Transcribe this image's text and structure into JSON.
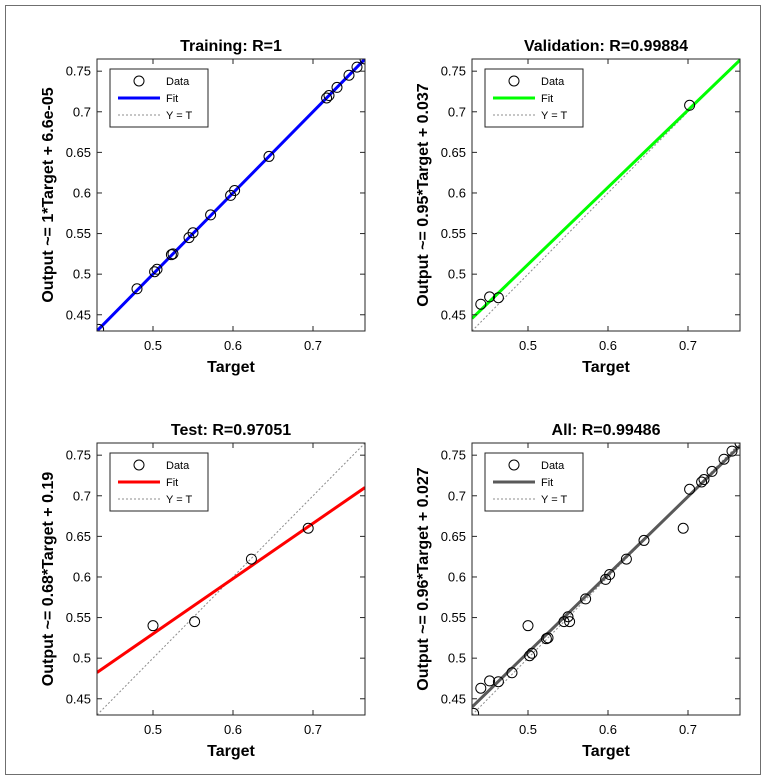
{
  "chart_data": [
    {
      "type": "scatter",
      "title": "Training: R=1",
      "xlabel": "Target",
      "ylabel": "Output ~= 1*Target + 6.6e-05",
      "xlim": [
        0.43,
        0.765
      ],
      "ylim": [
        0.43,
        0.765
      ],
      "xticks": [
        0.5,
        0.6,
        0.7
      ],
      "yticks": [
        0.45,
        0.5,
        0.55,
        0.6,
        0.65,
        0.7,
        0.75
      ],
      "fit": {
        "slope": 1,
        "intercept": 6.6e-05,
        "color": "#0000ff"
      },
      "legend": {
        "position": "top-left",
        "entries": [
          "Data",
          "Fit",
          "Y = T"
        ]
      },
      "points": [
        [
          0.432,
          0.432
        ],
        [
          0.48,
          0.482
        ],
        [
          0.502,
          0.503
        ],
        [
          0.505,
          0.506
        ],
        [
          0.523,
          0.524
        ],
        [
          0.525,
          0.525
        ],
        [
          0.545,
          0.545
        ],
        [
          0.55,
          0.551
        ],
        [
          0.572,
          0.573
        ],
        [
          0.597,
          0.597
        ],
        [
          0.602,
          0.603
        ],
        [
          0.645,
          0.645
        ],
        [
          0.717,
          0.717
        ],
        [
          0.72,
          0.72
        ],
        [
          0.73,
          0.73
        ],
        [
          0.745,
          0.745
        ],
        [
          0.755,
          0.755
        ],
        [
          0.765,
          0.765
        ]
      ]
    },
    {
      "type": "scatter",
      "title": "Validation: R=0.99884",
      "xlabel": "Target",
      "ylabel": "Output ~= 0.95*Target + 0.037",
      "xlim": [
        0.43,
        0.765
      ],
      "ylim": [
        0.43,
        0.765
      ],
      "xticks": [
        0.5,
        0.6,
        0.7
      ],
      "yticks": [
        0.45,
        0.5,
        0.55,
        0.6,
        0.65,
        0.7,
        0.75
      ],
      "fit": {
        "slope": 0.95,
        "intercept": 0.037,
        "color": "#00ff00"
      },
      "legend": {
        "position": "top-left",
        "entries": [
          "Data",
          "Fit",
          "Y = T"
        ]
      },
      "points": [
        [
          0.441,
          0.463
        ],
        [
          0.452,
          0.472
        ],
        [
          0.463,
          0.471
        ],
        [
          0.702,
          0.708
        ]
      ]
    },
    {
      "type": "scatter",
      "title": "Test: R=0.97051",
      "xlabel": "Target",
      "ylabel": "Output ~= 0.68*Target + 0.19",
      "xlim": [
        0.43,
        0.765
      ],
      "ylim": [
        0.43,
        0.765
      ],
      "xticks": [
        0.5,
        0.6,
        0.7
      ],
      "yticks": [
        0.45,
        0.5,
        0.55,
        0.6,
        0.65,
        0.7,
        0.75
      ],
      "fit": {
        "slope": 0.68,
        "intercept": 0.19,
        "color": "#ff0000"
      },
      "legend": {
        "position": "top-left",
        "entries": [
          "Data",
          "Fit",
          "Y = T"
        ]
      },
      "points": [
        [
          0.5,
          0.54
        ],
        [
          0.552,
          0.545
        ],
        [
          0.623,
          0.622
        ],
        [
          0.694,
          0.66
        ]
      ]
    },
    {
      "type": "scatter",
      "title": "All: R=0.99486",
      "xlabel": "Target",
      "ylabel": "Output ~= 0.96*Target + 0.027",
      "xlim": [
        0.43,
        0.765
      ],
      "ylim": [
        0.43,
        0.765
      ],
      "xticks": [
        0.5,
        0.6,
        0.7
      ],
      "yticks": [
        0.45,
        0.5,
        0.55,
        0.6,
        0.65,
        0.7,
        0.75
      ],
      "fit": {
        "slope": 0.96,
        "intercept": 0.027,
        "color": "#595959"
      },
      "legend": {
        "position": "top-left",
        "entries": [
          "Data",
          "Fit",
          "Y = T"
        ]
      },
      "points": [
        [
          0.432,
          0.432
        ],
        [
          0.441,
          0.463
        ],
        [
          0.452,
          0.472
        ],
        [
          0.463,
          0.471
        ],
        [
          0.48,
          0.482
        ],
        [
          0.5,
          0.54
        ],
        [
          0.502,
          0.503
        ],
        [
          0.505,
          0.506
        ],
        [
          0.523,
          0.524
        ],
        [
          0.525,
          0.525
        ],
        [
          0.545,
          0.545
        ],
        [
          0.55,
          0.551
        ],
        [
          0.552,
          0.545
        ],
        [
          0.572,
          0.573
        ],
        [
          0.597,
          0.597
        ],
        [
          0.602,
          0.603
        ],
        [
          0.623,
          0.622
        ],
        [
          0.645,
          0.645
        ],
        [
          0.694,
          0.66
        ],
        [
          0.702,
          0.708
        ],
        [
          0.717,
          0.717
        ],
        [
          0.72,
          0.72
        ],
        [
          0.73,
          0.73
        ],
        [
          0.745,
          0.745
        ],
        [
          0.755,
          0.755
        ],
        [
          0.765,
          0.765
        ]
      ]
    }
  ]
}
